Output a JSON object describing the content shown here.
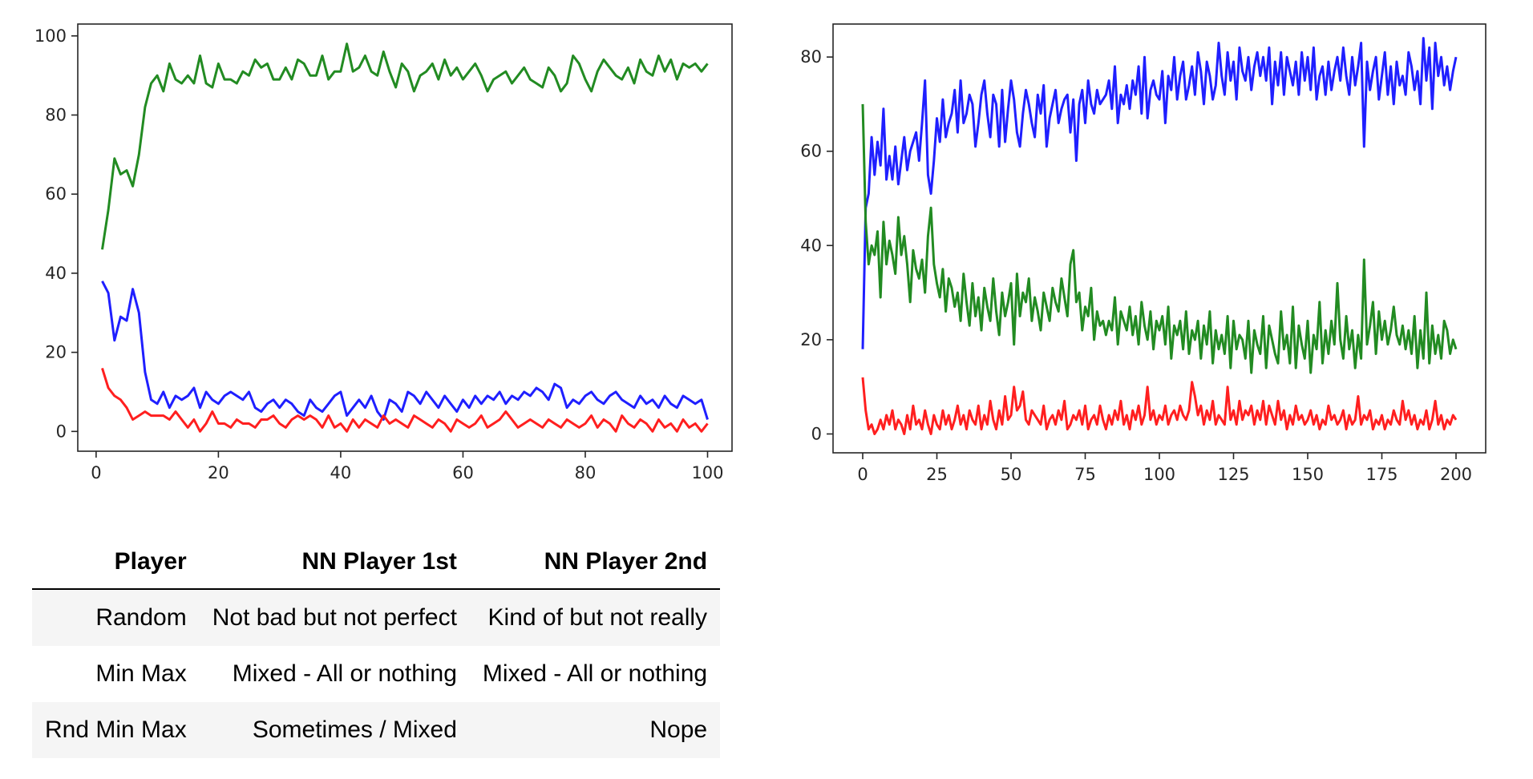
{
  "chart_data": [
    {
      "type": "line",
      "xlim": [
        -3,
        104
      ],
      "ylim": [
        -5,
        103
      ],
      "x_ticks": [
        0,
        20,
        40,
        60,
        80,
        100
      ],
      "y_ticks": [
        0,
        20,
        40,
        60,
        80,
        100
      ],
      "grid": false,
      "x": [
        1,
        2,
        3,
        4,
        5,
        6,
        7,
        8,
        9,
        10,
        11,
        12,
        13,
        14,
        15,
        16,
        17,
        18,
        19,
        20,
        21,
        22,
        23,
        24,
        25,
        26,
        27,
        28,
        29,
        30,
        31,
        32,
        33,
        34,
        35,
        36,
        37,
        38,
        39,
        40,
        41,
        42,
        43,
        44,
        45,
        46,
        47,
        48,
        49,
        50,
        51,
        52,
        53,
        54,
        55,
        56,
        57,
        58,
        59,
        60,
        61,
        62,
        63,
        64,
        65,
        66,
        67,
        68,
        69,
        70,
        71,
        72,
        73,
        74,
        75,
        76,
        77,
        78,
        79,
        80,
        81,
        82,
        83,
        84,
        85,
        86,
        87,
        88,
        89,
        90,
        91,
        92,
        93,
        94,
        95,
        96,
        97,
        98,
        99,
        100
      ],
      "series": [
        {
          "color": "#228b22",
          "values": [
            46,
            56,
            69,
            65,
            66,
            62,
            70,
            82,
            88,
            90,
            86,
            93,
            89,
            88,
            90,
            88,
            95,
            88,
            87,
            93,
            89,
            89,
            88,
            91,
            90,
            94,
            92,
            93,
            89,
            89,
            92,
            89,
            94,
            93,
            90,
            90,
            95,
            89,
            91,
            91,
            98,
            91,
            92,
            95,
            91,
            90,
            96,
            91,
            87,
            93,
            91,
            86,
            90,
            91,
            93,
            89,
            94,
            90,
            92,
            89,
            91,
            93,
            90,
            86,
            89,
            90,
            91,
            88,
            90,
            92,
            89,
            88,
            87,
            92,
            90,
            86,
            88,
            95,
            93,
            89,
            86,
            91,
            94,
            92,
            90,
            89,
            92,
            88,
            94,
            91,
            90,
            95,
            91,
            94,
            89,
            93,
            92,
            93,
            91,
            93
          ]
        },
        {
          "color": "#1f1fff",
          "values": [
            38,
            35,
            23,
            29,
            28,
            36,
            30,
            15,
            8,
            7,
            10,
            6,
            9,
            8,
            9,
            11,
            6,
            10,
            8,
            7,
            9,
            10,
            9,
            8,
            10,
            6,
            5,
            7,
            8,
            6,
            8,
            7,
            5,
            4,
            8,
            6,
            5,
            7,
            9,
            10,
            4,
            6,
            8,
            6,
            9,
            5,
            3,
            8,
            7,
            5,
            10,
            9,
            7,
            10,
            8,
            6,
            9,
            7,
            5,
            8,
            6,
            9,
            7,
            9,
            8,
            10,
            7,
            9,
            8,
            10,
            9,
            11,
            10,
            8,
            12,
            11,
            6,
            8,
            7,
            9,
            10,
            8,
            7,
            9,
            10,
            8,
            7,
            6,
            9,
            7,
            8,
            6,
            9,
            7,
            6,
            9,
            8,
            7,
            8,
            3
          ]
        },
        {
          "color": "#ff1f1f",
          "values": [
            16,
            11,
            9,
            8,
            6,
            3,
            4,
            5,
            4,
            4,
            4,
            3,
            5,
            3,
            1,
            3,
            0,
            2,
            5,
            2,
            2,
            1,
            3,
            2,
            2,
            1,
            3,
            3,
            4,
            2,
            1,
            3,
            4,
            3,
            4,
            3,
            1,
            4,
            1,
            2,
            0,
            3,
            1,
            3,
            2,
            1,
            4,
            2,
            3,
            2,
            1,
            4,
            3,
            2,
            1,
            3,
            2,
            0,
            3,
            2,
            1,
            2,
            4,
            1,
            2,
            3,
            5,
            3,
            1,
            2,
            3,
            2,
            1,
            3,
            2,
            1,
            3,
            2,
            1,
            2,
            4,
            1,
            3,
            2,
            0,
            4,
            2,
            1,
            3,
            2,
            0,
            3,
            1,
            2,
            0,
            3,
            1,
            2,
            0,
            2
          ]
        }
      ]
    },
    {
      "type": "line",
      "xlim": [
        -10,
        210
      ],
      "ylim": [
        -4,
        87
      ],
      "x_ticks": [
        0,
        25,
        50,
        75,
        100,
        125,
        150,
        175,
        200
      ],
      "y_ticks": [
        0,
        20,
        40,
        60,
        80
      ],
      "grid": false,
      "x": [
        0,
        1,
        2,
        3,
        4,
        5,
        6,
        7,
        8,
        9,
        10,
        11,
        12,
        13,
        14,
        15,
        16,
        17,
        18,
        19,
        20,
        21,
        22,
        23,
        24,
        25,
        26,
        27,
        28,
        29,
        30,
        31,
        32,
        33,
        34,
        35,
        36,
        37,
        38,
        39,
        40,
        41,
        42,
        43,
        44,
        45,
        46,
        47,
        48,
        49,
        50,
        51,
        52,
        53,
        54,
        55,
        56,
        57,
        58,
        59,
        60,
        61,
        62,
        63,
        64,
        65,
        66,
        67,
        68,
        69,
        70,
        71,
        72,
        73,
        74,
        75,
        76,
        77,
        78,
        79,
        80,
        81,
        82,
        83,
        84,
        85,
        86,
        87,
        88,
        89,
        90,
        91,
        92,
        93,
        94,
        95,
        96,
        97,
        98,
        99,
        100,
        101,
        102,
        103,
        104,
        105,
        106,
        107,
        108,
        109,
        110,
        111,
        112,
        113,
        114,
        115,
        116,
        117,
        118,
        119,
        120,
        121,
        122,
        123,
        124,
        125,
        126,
        127,
        128,
        129,
        130,
        131,
        132,
        133,
        134,
        135,
        136,
        137,
        138,
        139,
        140,
        141,
        142,
        143,
        144,
        145,
        146,
        147,
        148,
        149,
        150,
        151,
        152,
        153,
        154,
        155,
        156,
        157,
        158,
        159,
        160,
        161,
        162,
        163,
        164,
        165,
        166,
        167,
        168,
        169,
        170,
        171,
        172,
        173,
        174,
        175,
        176,
        177,
        178,
        179,
        180,
        181,
        182,
        183,
        184,
        185,
        186,
        187,
        188,
        189,
        190,
        191,
        192,
        193,
        194,
        195,
        196,
        197,
        198,
        199,
        200
      ],
      "series": [
        {
          "color": "#1f1fff",
          "values": [
            18,
            48,
            51,
            63,
            55,
            62,
            57,
            69,
            54,
            59,
            54,
            61,
            53,
            58,
            63,
            56,
            60,
            62,
            64,
            58,
            66,
            75,
            55,
            51,
            58,
            67,
            62,
            71,
            63,
            66,
            68,
            73,
            64,
            75,
            66,
            68,
            72,
            70,
            61,
            66,
            72,
            75,
            68,
            63,
            72,
            70,
            61,
            73,
            62,
            69,
            75,
            71,
            64,
            61,
            68,
            73,
            70,
            66,
            63,
            72,
            68,
            74,
            61,
            67,
            70,
            73,
            66,
            69,
            71,
            72,
            64,
            71,
            58,
            70,
            73,
            66,
            75,
            70,
            68,
            73,
            70,
            71,
            72,
            75,
            69,
            78,
            66,
            72,
            70,
            74,
            69,
            75,
            72,
            78,
            68,
            80,
            67,
            73,
            75,
            72,
            71,
            77,
            66,
            76,
            73,
            80,
            71,
            76,
            79,
            71,
            74,
            78,
            72,
            81,
            77,
            70,
            79,
            76,
            71,
            74,
            83,
            76,
            72,
            81,
            75,
            79,
            71,
            82,
            77,
            75,
            80,
            73,
            78,
            81,
            76,
            80,
            75,
            82,
            70,
            79,
            74,
            81,
            72,
            80,
            77,
            74,
            79,
            72,
            81,
            75,
            80,
            73,
            82,
            71,
            76,
            78,
            72,
            79,
            73,
            77,
            80,
            75,
            82,
            76,
            72,
            80,
            74,
            78,
            83,
            61,
            79,
            73,
            77,
            80,
            71,
            76,
            81,
            72,
            78,
            70,
            79,
            74,
            76,
            72,
            81,
            78,
            73,
            77,
            70,
            84,
            75,
            82,
            69,
            83,
            76,
            80,
            74,
            78,
            73,
            77,
            80
          ]
        },
        {
          "color": "#228b22",
          "values": [
            70,
            45,
            36,
            40,
            38,
            43,
            29,
            45,
            36,
            41,
            38,
            34,
            46,
            38,
            42,
            36,
            28,
            39,
            35,
            33,
            37,
            30,
            42,
            48,
            36,
            32,
            29,
            35,
            26,
            33,
            31,
            27,
            30,
            24,
            34,
            28,
            23,
            32,
            25,
            29,
            22,
            31,
            27,
            24,
            33,
            26,
            21,
            30,
            25,
            28,
            32,
            19,
            34,
            25,
            30,
            28,
            33,
            24,
            29,
            26,
            22,
            30,
            27,
            24,
            31,
            28,
            26,
            33,
            29,
            25,
            36,
            39,
            28,
            30,
            22,
            27,
            25,
            31,
            20,
            26,
            23,
            24,
            21,
            24,
            22,
            29,
            19,
            26,
            24,
            22,
            27,
            21,
            25,
            19,
            28,
            23,
            20,
            26,
            18,
            24,
            22,
            25,
            19,
            27,
            16,
            23,
            21,
            24,
            18,
            26,
            17,
            22,
            20,
            24,
            16,
            23,
            19,
            26,
            15,
            22,
            18,
            21,
            17,
            25,
            14,
            24,
            18,
            21,
            20,
            16,
            24,
            13,
            22,
            19,
            17,
            25,
            14,
            23,
            20,
            17,
            15,
            26,
            18,
            21,
            15,
            27,
            14,
            23,
            19,
            16,
            24,
            13,
            21,
            18,
            28,
            15,
            22,
            17,
            24,
            19,
            32,
            20,
            16,
            25,
            18,
            22,
            14,
            21,
            16,
            37,
            19,
            23,
            28,
            17,
            26,
            20,
            24,
            19,
            22,
            27,
            21,
            19,
            23,
            18,
            22,
            17,
            25,
            14,
            22,
            16,
            30,
            15,
            23,
            17,
            21,
            16,
            24,
            22,
            17,
            20,
            18
          ]
        },
        {
          "color": "#ff1f1f",
          "values": [
            12,
            5,
            1,
            2,
            0,
            1,
            3,
            1,
            4,
            2,
            5,
            1,
            3,
            2,
            0,
            4,
            1,
            6,
            2,
            3,
            1,
            5,
            2,
            0,
            4,
            2,
            1,
            5,
            2,
            4,
            1,
            3,
            6,
            2,
            4,
            1,
            5,
            3,
            2,
            6,
            1,
            4,
            2,
            7,
            3,
            1,
            5,
            2,
            8,
            3,
            4,
            10,
            5,
            6,
            9,
            3,
            2,
            5,
            4,
            3,
            2,
            6,
            1,
            3,
            4,
            2,
            5,
            3,
            7,
            1,
            2,
            4,
            3,
            5,
            2,
            6,
            1,
            3,
            4,
            2,
            6,
            3,
            1,
            4,
            2,
            5,
            3,
            7,
            2,
            4,
            1,
            5,
            3,
            6,
            2,
            4,
            10,
            3,
            5,
            2,
            4,
            3,
            6,
            2,
            4,
            5,
            3,
            6,
            4,
            3,
            5,
            11,
            8,
            4,
            6,
            2,
            5,
            3,
            7,
            2,
            4,
            3,
            2,
            10,
            3,
            5,
            2,
            7,
            3,
            5,
            4,
            6,
            2,
            5,
            3,
            7,
            2,
            6,
            4,
            2,
            7,
            3,
            5,
            1,
            4,
            2,
            6,
            3,
            4,
            2,
            3,
            5,
            2,
            4,
            1,
            3,
            2,
            6,
            3,
            4,
            2,
            3,
            5,
            1,
            4,
            2,
            3,
            8,
            2,
            4,
            3,
            5,
            1,
            3,
            2,
            4,
            1,
            3,
            2,
            5,
            3,
            2,
            7,
            3,
            5,
            2,
            4,
            1,
            3,
            2,
            5,
            1,
            3,
            7,
            2,
            4,
            1,
            3,
            2,
            4,
            3
          ]
        }
      ]
    }
  ],
  "table": {
    "headers": [
      "Player",
      "NN Player 1st",
      "NN Player 2nd"
    ],
    "rows": [
      [
        "Random",
        "Not bad but not perfect",
        "Kind of but not really"
      ],
      [
        "Min Max",
        "Mixed - All or nothing",
        "Mixed - All or nothing"
      ],
      [
        "Rnd Min Max",
        "Sometimes / Mixed",
        "Nope"
      ]
    ]
  }
}
